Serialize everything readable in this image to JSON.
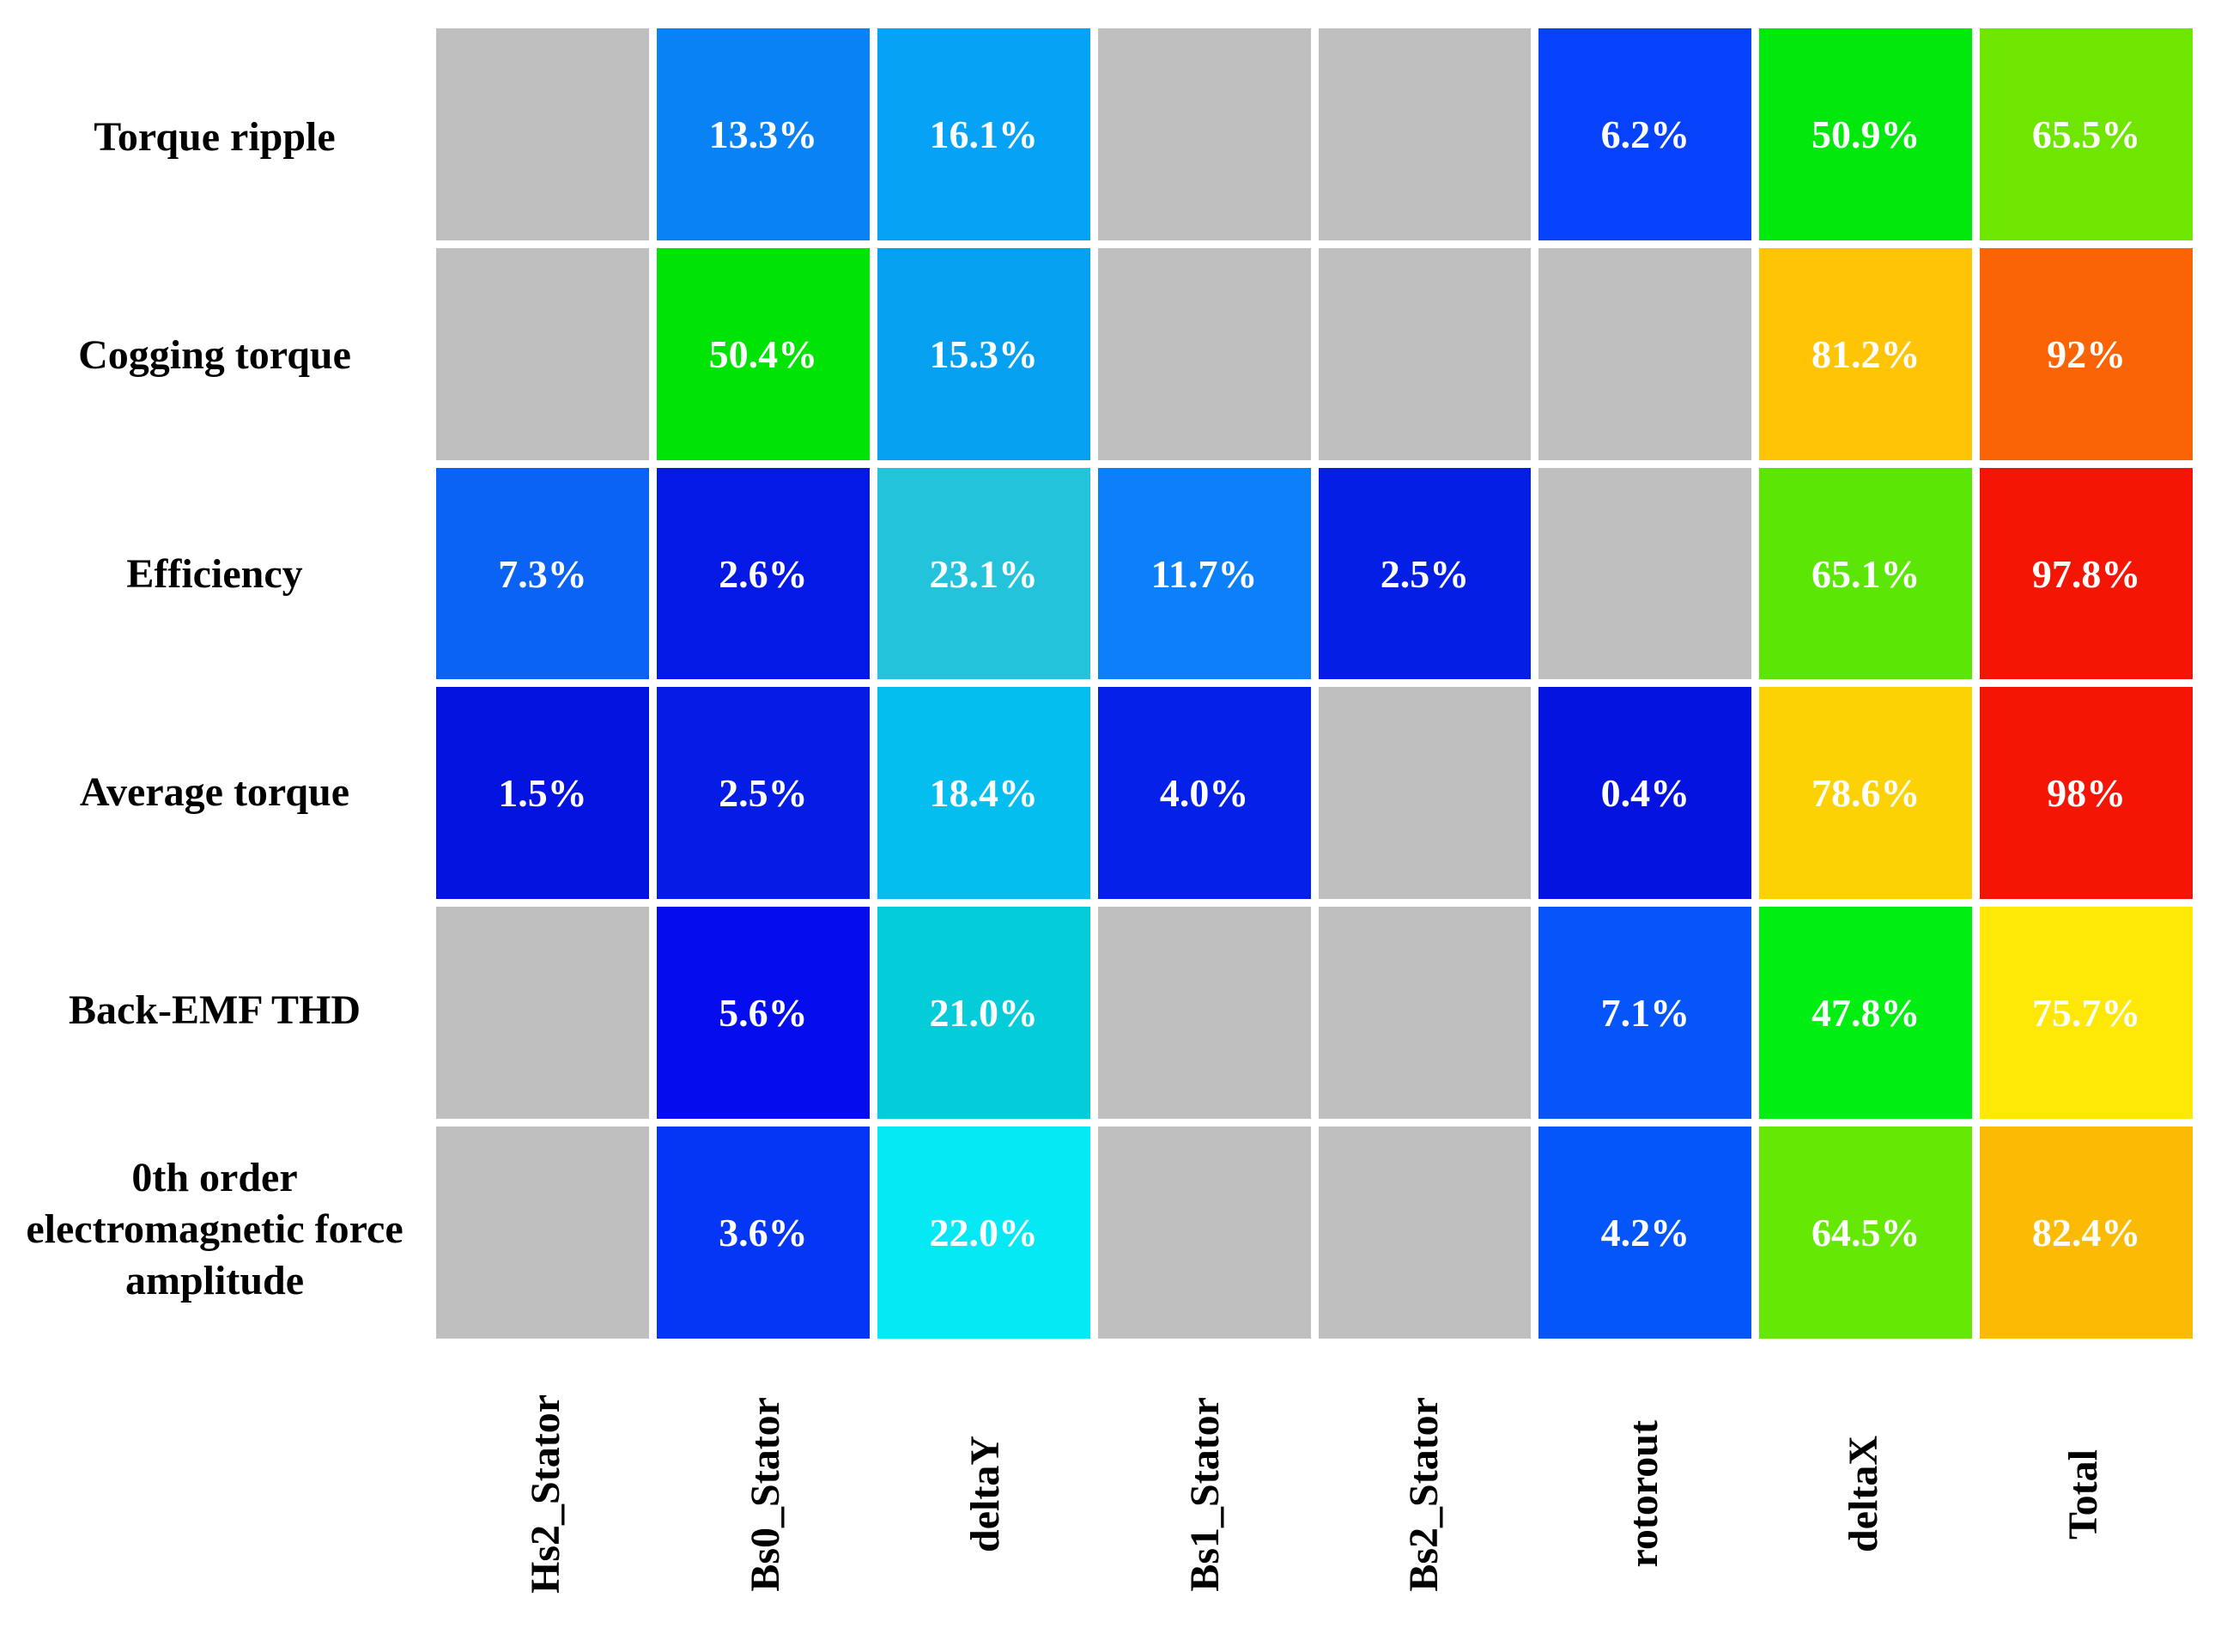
{
  "chart_data": {
    "type": "heatmap",
    "title": "",
    "xlabel": "",
    "ylabel": "",
    "legend": "none",
    "grid": "off",
    "empty_color": "#BFBFBF",
    "gap_color": "#FFFFFF",
    "value_text_color": "#FFFFFF",
    "label_text_color": "#000000",
    "rows": [
      "Torque ripple",
      "Cogging torque",
      "Efficiency",
      "Average torque",
      "Back-EMF THD",
      "0th order electromagnetic force amplitude"
    ],
    "columns": [
      "Hs2_Stator",
      "Bs0_Stator",
      "deltaY",
      "Bs1_Stator",
      "Bs2_Stator",
      "rotorout",
      "deltaX",
      "Total"
    ],
    "matrix": [
      [
        null,
        "13.3%",
        "16.1%",
        null,
        null,
        "6.2%",
        "50.9%",
        "65.5%"
      ],
      [
        null,
        "50.4%",
        "15.3%",
        null,
        null,
        null,
        "81.2%",
        "92%"
      ],
      [
        "7.3%",
        "2.6%",
        "23.1%",
        "11.7%",
        "2.5%",
        null,
        "65.1%",
        "97.8%"
      ],
      [
        "1.5%",
        "2.5%",
        "18.4%",
        "4.0%",
        null,
        "0.4%",
        "78.6%",
        "98%"
      ],
      [
        null,
        "5.6%",
        "21.0%",
        null,
        null,
        "7.1%",
        "47.8%",
        "75.7%"
      ],
      [
        null,
        "3.6%",
        "22.0%",
        null,
        null,
        "4.2%",
        "64.5%",
        "82.4%"
      ]
    ],
    "values_percent": [
      [
        null,
        13.3,
        16.1,
        null,
        null,
        6.2,
        50.9,
        65.5
      ],
      [
        null,
        50.4,
        15.3,
        null,
        null,
        null,
        81.2,
        92
      ],
      [
        7.3,
        2.6,
        23.1,
        11.7,
        2.5,
        null,
        65.1,
        97.8
      ],
      [
        1.5,
        2.5,
        18.4,
        4.0,
        null,
        0.4,
        78.6,
        98
      ],
      [
        null,
        5.6,
        21.0,
        null,
        null,
        7.1,
        47.8,
        75.7
      ],
      [
        null,
        3.6,
        22.0,
        null,
        null,
        4.2,
        64.5,
        82.4
      ]
    ],
    "cell_colors": [
      [
        null,
        "#0882F5",
        "#05A2F5",
        null,
        null,
        "#0542FA",
        "#00E80C",
        "#6EE600"
      ],
      [
        null,
        "#00E405",
        "#05A0F0",
        null,
        null,
        null,
        "#FFC405",
        "#FA6405"
      ],
      [
        "#0B63F5",
        "#0519E6",
        "#23C3DC",
        "#0B80FA",
        "#051EE6",
        null,
        "#5CE605",
        "#F51505"
      ],
      [
        "#0513E0",
        "#051BE6",
        "#05BEF0",
        "#0520E8",
        null,
        "#0513E0",
        "#FCD205",
        "#F51505"
      ],
      [
        null,
        "#050CEE",
        "#05CCD9",
        null,
        null,
        "#0555FA",
        "#00EE11",
        "#FFE805"
      ],
      [
        null,
        "#0535F5",
        "#05E9F5",
        null,
        null,
        "#0455FA",
        "#66E805",
        "#FBBB05"
      ]
    ],
    "colormap_hint": "jet-like: blue = low %, cyan/green = mid %, yellow/orange/red = high %; gray = not applicable"
  }
}
